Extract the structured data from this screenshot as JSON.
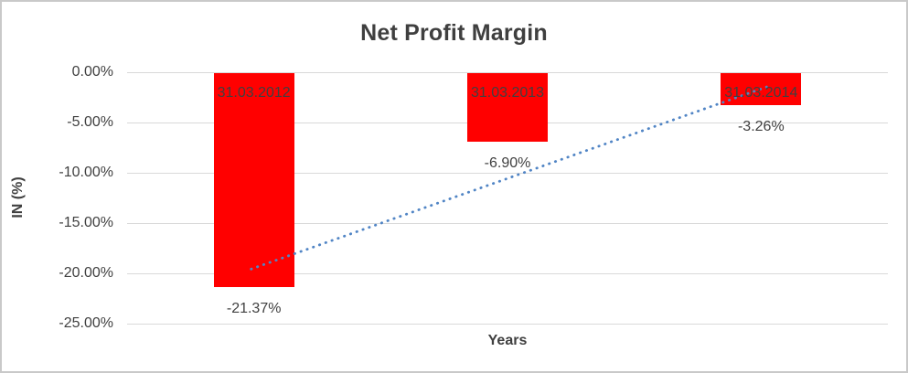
{
  "chart_data": {
    "type": "bar",
    "title": "Net Profit Margin",
    "xlabel": "Years",
    "ylabel": "IN (%)",
    "categories": [
      "31.03.2012",
      "31.03.2013",
      "31.03.2014"
    ],
    "values": [
      -21.37,
      -6.9,
      -3.26
    ],
    "data_labels": [
      "-21.37%",
      "-6.90%",
      "-3.26%"
    ],
    "category_label_position": "inside-top-of-bar",
    "data_label_position": "below-bar-end",
    "y_ticks": [
      {
        "value": 0,
        "label": "0.00%"
      },
      {
        "value": -5,
        "label": "-5.00%"
      },
      {
        "value": -10,
        "label": "-10.00%"
      },
      {
        "value": -15,
        "label": "-15.00%"
      },
      {
        "value": -20,
        "label": "-20.00%"
      },
      {
        "value": -25,
        "label": "-25.00%"
      }
    ],
    "ylim": [
      -25,
      0
    ],
    "grid": true,
    "legend": "none",
    "bar_color": "#ff0000",
    "gridline_color": "#d9d9d9",
    "text_color": "#404040",
    "trendline": {
      "type": "linear",
      "style": "dotted",
      "color": "#5185c5",
      "start_value": -19.57,
      "end_value": -1.46
    }
  }
}
